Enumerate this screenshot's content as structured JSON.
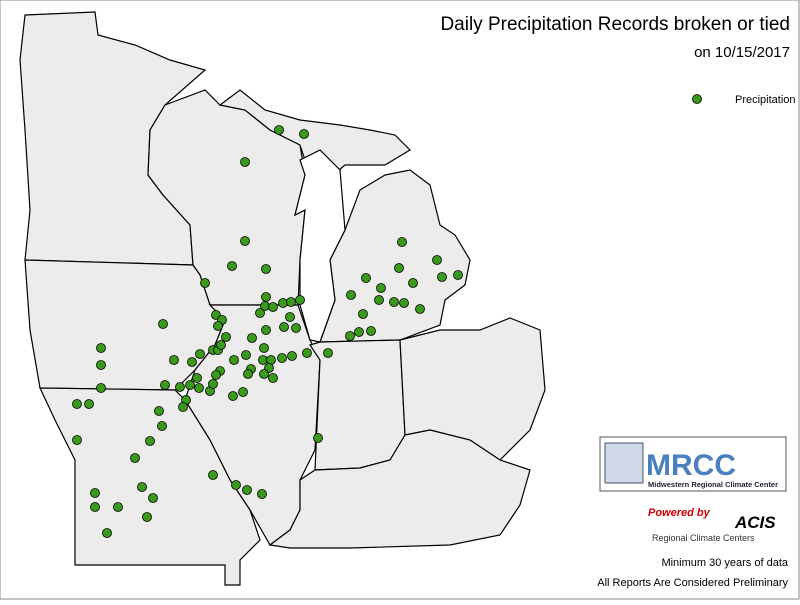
{
  "header": {
    "title": "Daily Precipitation Records broken or tied",
    "subtitle": "on 10/15/2017"
  },
  "legend": {
    "label": "Precipitation",
    "color": "#3a9a1a"
  },
  "logo": {
    "name": "MRCC",
    "full_name": "Midwestern Regional Climate Center"
  },
  "acis": {
    "powered_by": "Powered by",
    "name": "ACIS",
    "subtitle": "Regional Climate Centers"
  },
  "notes": [
    "Minimum 30 years of data",
    "All Reports Are Considered Preliminary"
  ]
}
